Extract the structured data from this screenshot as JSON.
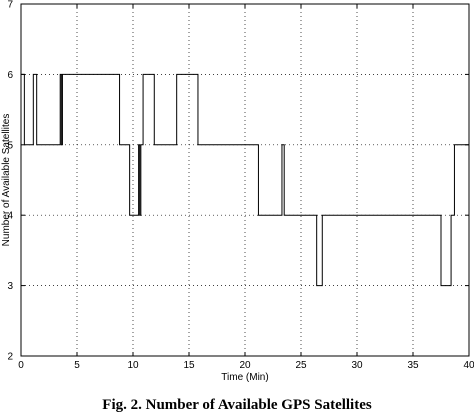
{
  "caption": "Fig. 2. Number of Available GPS Satellites",
  "chart_data": {
    "type": "line",
    "title": "",
    "xlabel": "Time (Min)",
    "ylabel": "Number of Available Satellites",
    "xlim": [
      0,
      40
    ],
    "ylim": [
      2,
      7
    ],
    "xticks": [
      0,
      5,
      10,
      15,
      20,
      25,
      30,
      35,
      40
    ],
    "yticks": [
      2,
      3,
      4,
      5,
      6,
      7
    ],
    "grid": true,
    "step": true,
    "series": [
      {
        "x": [
          0,
          0.2,
          0.3,
          1.0,
          1.1,
          1.3,
          1.4,
          3.4,
          3.5,
          3.6,
          3.7,
          8.7,
          8.8,
          9.6,
          9.7,
          10.4,
          10.5,
          10.6,
          10.7,
          10.8,
          10.9,
          11.8,
          11.9,
          13.8,
          13.9,
          15.7,
          15.8,
          21.1,
          21.2,
          23.2,
          23.3,
          23.4,
          23.5,
          26.3,
          26.4,
          26.8,
          26.9,
          27.1,
          27.2,
          37.4,
          37.5,
          38.3,
          38.4,
          38.6,
          38.7,
          40
        ],
        "y": [
          6,
          6,
          5,
          5,
          6,
          6,
          5,
          5,
          6,
          5,
          6,
          6,
          5,
          5,
          4,
          4,
          5,
          4,
          5,
          5,
          6,
          6,
          5,
          5,
          6,
          6,
          5,
          5,
          4,
          4,
          5,
          5,
          4,
          4,
          3,
          3,
          4,
          4,
          4,
          4,
          3,
          3,
          4,
          4,
          5,
          5
        ]
      }
    ]
  }
}
